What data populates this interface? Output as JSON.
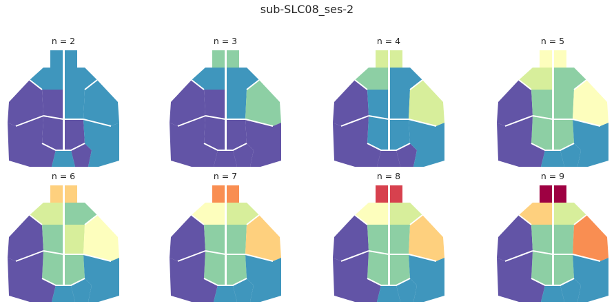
{
  "figure": {
    "title": "sub-SLC08_ses-2"
  },
  "colors": {
    "c1": "#5e4fa2",
    "c2": "#3288bd",
    "c3": "#66c2a5",
    "c4": "#abdda4",
    "c5": "#e6f598",
    "c6": "#fee08b",
    "c7": "#fdae61",
    "c8": "#f46d43",
    "c9": "#d53e4f",
    "c10": "#9e0142",
    "boundary": "#ffffff"
  },
  "panels": [
    {
      "title": "n = 2",
      "cluster_count": 2,
      "region_colors": [
        "#3f96bd",
        "#3f96bd",
        "#3f96bd",
        "#3f96bd",
        "#6254a6",
        "#6254a6",
        "#3f96bd",
        "#3f96bd",
        "#6254a6",
        "#6254a6",
        "#6254a6",
        "#3f96bd",
        "#3f96bd"
      ]
    },
    {
      "title": "n = 3",
      "cluster_count": 3,
      "region_colors": [
        "#8dcfa4",
        "#8dcfa4",
        "#3f96bd",
        "#3f96bd",
        "#6254a6",
        "#6254a6",
        "#3f96bd",
        "#8dcfa4",
        "#6254a6",
        "#6254a6",
        "#6254a6",
        "#6254a6",
        "#6254a6"
      ]
    },
    {
      "title": "n = 4",
      "cluster_count": 4,
      "region_colors": [
        "#d7ee9b",
        "#d7ee9b",
        "#8dcfa4",
        "#3f96bd",
        "#6254a6",
        "#3f96bd",
        "#3f96bd",
        "#d7ee9b",
        "#3f96bd",
        "#6254a6",
        "#6254a6",
        "#3f96bd",
        "#6254a6"
      ]
    },
    {
      "title": "n = 5",
      "cluster_count": 5,
      "region_colors": [
        "#fdfebd",
        "#fdfebd",
        "#d7ee9b",
        "#8dcfa4",
        "#6254a6",
        "#8dcfa4",
        "#8dcfa4",
        "#fdfebd",
        "#8dcfa4",
        "#6254a6",
        "#3f96bd",
        "#3f96bd",
        "#3f96bd"
      ]
    },
    {
      "title": "n = 6",
      "cluster_count": 6,
      "region_colors": [
        "#fed07e",
        "#fed07e",
        "#d7ee9b",
        "#8dcfa4",
        "#6254a6",
        "#8dcfa4",
        "#d7ee9b",
        "#fdfebd",
        "#8dcfa4",
        "#6254a6",
        "#3f96bd",
        "#3f96bd",
        "#3f96bd"
      ]
    },
    {
      "title": "n = 7",
      "cluster_count": 7,
      "region_colors": [
        "#f98e52",
        "#f98e52",
        "#fdfebd",
        "#d7ee9b",
        "#6254a6",
        "#8dcfa4",
        "#8dcfa4",
        "#fed07e",
        "#8dcfa4",
        "#6254a6",
        "#3f96bd",
        "#3f96bd",
        "#3f96bd"
      ]
    },
    {
      "title": "n = 8",
      "cluster_count": 8,
      "region_colors": [
        "#d7414e",
        "#d7414e",
        "#fdfebd",
        "#d7ee9b",
        "#6254a6",
        "#8dcfa4",
        "#8dcfa4",
        "#fed07e",
        "#8dcfa4",
        "#6254a6",
        "#3f96bd",
        "#3f96bd",
        "#3f96bd"
      ]
    },
    {
      "title": "n = 9",
      "cluster_count": 9,
      "region_colors": [
        "#9e0142",
        "#9e0142",
        "#fed07e",
        "#d7ee9b",
        "#6254a6",
        "#8dcfa4",
        "#8dcfa4",
        "#f98e52",
        "#8dcfa4",
        "#6254a6",
        "#3f96bd",
        "#3f96bd",
        "#3f96bd"
      ]
    }
  ]
}
